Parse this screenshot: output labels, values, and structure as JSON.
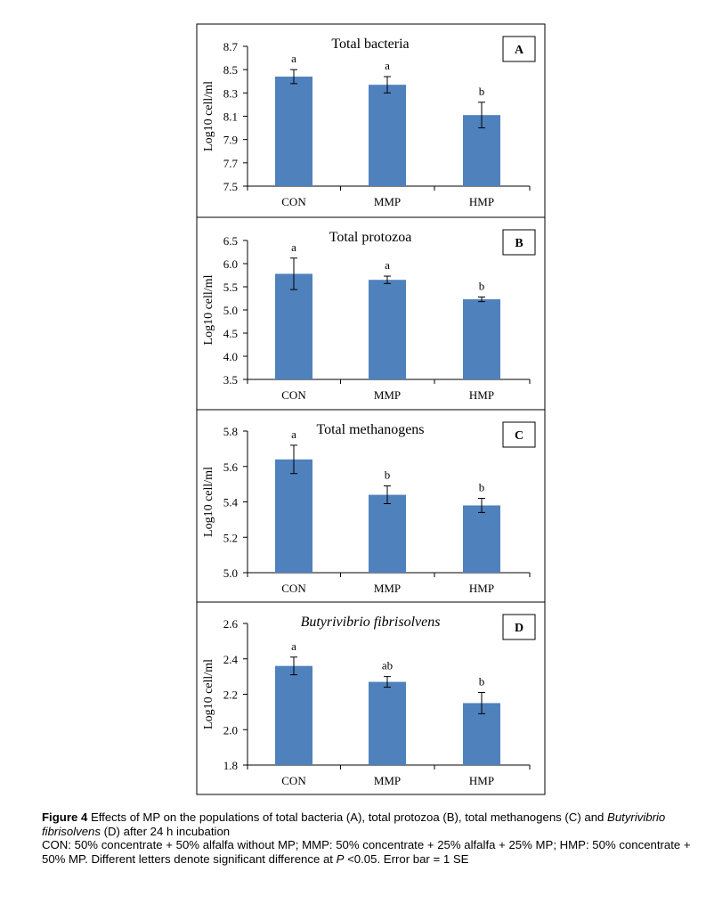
{
  "chart_data": [
    {
      "type": "bar",
      "panel_label": "A",
      "title": "Total bacteria",
      "title_italic": false,
      "ylabel": "Log10 cell/ml",
      "ylim": [
        7.5,
        8.7
      ],
      "yticks": [
        "7.5",
        "7.7",
        "7.9",
        "8.1",
        "8.3",
        "8.5",
        "8.7"
      ],
      "categories": [
        "CON",
        "MMP",
        "HMP"
      ],
      "values": [
        8.44,
        8.37,
        8.11
      ],
      "errors": [
        0.06,
        0.07,
        0.11
      ],
      "letters": [
        "a",
        "a",
        "b"
      ],
      "bar_color": "#4f81bd",
      "grid": false
    },
    {
      "type": "bar",
      "panel_label": "B",
      "title": "Total protozoa",
      "title_italic": false,
      "ylabel": "Log10 cell/ml",
      "ylim": [
        3.5,
        6.5
      ],
      "yticks": [
        "3.5",
        "4.0",
        "4.5",
        "5.0",
        "5.5",
        "6.0",
        "6.5"
      ],
      "categories": [
        "CON",
        "MMP",
        "HMP"
      ],
      "values": [
        5.78,
        5.65,
        5.23
      ],
      "errors": [
        0.34,
        0.08,
        0.05
      ],
      "letters": [
        "a",
        "a",
        "b"
      ],
      "bar_color": "#4f81bd",
      "grid": false
    },
    {
      "type": "bar",
      "panel_label": "C",
      "title": "Total methanogens",
      "title_italic": false,
      "ylabel": "Log10 cell/ml",
      "ylim": [
        5.0,
        5.8
      ],
      "yticks": [
        "5.0",
        "5.2",
        "5.4",
        "5.6",
        "5.8"
      ],
      "categories": [
        "CON",
        "MMP",
        "HMP"
      ],
      "values": [
        5.64,
        5.44,
        5.38
      ],
      "errors": [
        0.08,
        0.05,
        0.04
      ],
      "letters": [
        "a",
        "b",
        "b"
      ],
      "bar_color": "#4f81bd",
      "grid": false
    },
    {
      "type": "bar",
      "panel_label": "D",
      "title": "Butyrivibrio fibrisolvens",
      "title_italic": true,
      "ylabel": "Log10 cell/ml",
      "ylim": [
        1.8,
        2.6
      ],
      "yticks": [
        "1.8",
        "2.0",
        "2.2",
        "2.4",
        "2.6"
      ],
      "categories": [
        "CON",
        "MMP",
        "HMP"
      ],
      "values": [
        2.36,
        2.27,
        2.15
      ],
      "errors": [
        0.05,
        0.03,
        0.06
      ],
      "letters": [
        "a",
        "ab",
        "b"
      ],
      "bar_color": "#4f81bd",
      "grid": false
    }
  ],
  "caption": {
    "figure_label": "Figure 4",
    "line1_a": " Effects of MP on the populations of total bacteria (A), total protozoa (B), total methanogens (C) and ",
    "line1_italic": "Butyrivibrio fibrisolvens",
    "line1_b": " (D) after 24 h incubation",
    "line2_a": "CON: 50% concentrate + 50% alfalfa without MP; MMP: 50% concentrate + 25% alfalfa + 25% MP; HMP: 50% concentrate + 50% MP. Different letters denote significant difference at ",
    "line2_italic": "P",
    "line2_b": " <0.05. Error bar = 1 SE"
  }
}
